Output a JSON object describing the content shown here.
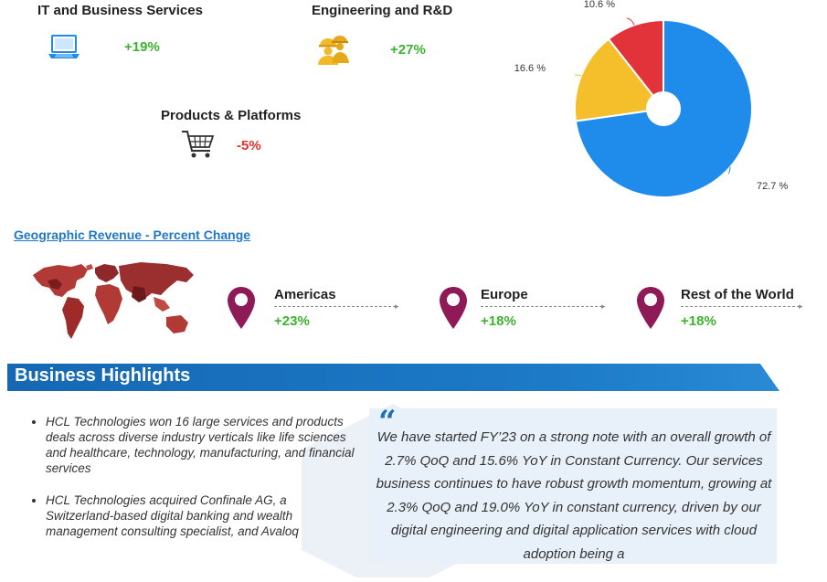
{
  "segments": [
    {
      "title": "IT and Business Services",
      "change": "+19%",
      "icon": "laptop-icon",
      "color": "#3cb22f"
    },
    {
      "title": "Engineering and R&D",
      "change": "+27%",
      "icon": "engineers-icon",
      "color": "#3cb22f"
    },
    {
      "title": "Products & Platforms",
      "change": "-5%",
      "icon": "shopping-cart-icon",
      "color": "#e0312f"
    }
  ],
  "chart_data": {
    "type": "pie",
    "donut": true,
    "slices": [
      {
        "label": "72.7 %",
        "value": 72.7,
        "color": "#1f8ceb"
      },
      {
        "label": "16.6 %",
        "value": 16.6,
        "color": "#f4bf2a"
      },
      {
        "label": "10.6 %",
        "value": 10.6,
        "color": "#e3333a"
      }
    ]
  },
  "geo": {
    "title": "Geographic Revenue - Percent Change",
    "regions": [
      {
        "name": "Americas",
        "change": "+23%"
      },
      {
        "name": "Europe",
        "change": "+18%"
      },
      {
        "name": "Rest of the World",
        "change": "+18%"
      }
    ],
    "pin_color": "#8e1a57"
  },
  "highlights": {
    "title": "Business Highlights",
    "items": [
      "HCL Technologies won 16 large services and products deals across diverse industry verticals like life sciences and healthcare, technology, manufacturing, and financial services",
      "HCL Technologies acquired Confinale AG, a Switzerland-based digital banking and wealth management consulting specialist, and Avaloq"
    ],
    "quote_mark": "“",
    "quote": "We have started FY’23 on a strong note with an overall growth of 2.7% QoQ and 15.6% YoY in Constant Currency. Our services business continues to have robust growth momentum, growing at 2.3% QoQ and 19.0% YoY in constant currency, driven by our digital engineering and digital application services with cloud adoption being a"
  }
}
